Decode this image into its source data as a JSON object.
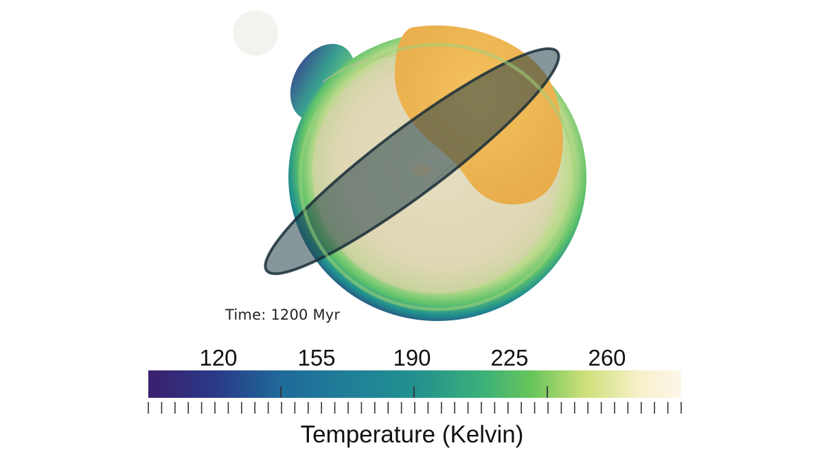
{
  "time_label": "Time: 1200 Myr",
  "colorbar": {
    "title": "Temperature (Kelvin)",
    "tick_labels": [
      "120",
      "155",
      "190",
      "225",
      "260"
    ],
    "colormap": [
      "#3b1f6e",
      "#2a3a87",
      "#1f6a9a",
      "#22908f",
      "#3bb07a",
      "#67c55a",
      "#cfe07a",
      "#f6f0c8",
      "#fdf6ea"
    ]
  },
  "colors": {
    "inner_core": "#f0b850",
    "ring_dark": "#1f3b4a",
    "shell_fill": "#d8d0b0"
  }
}
